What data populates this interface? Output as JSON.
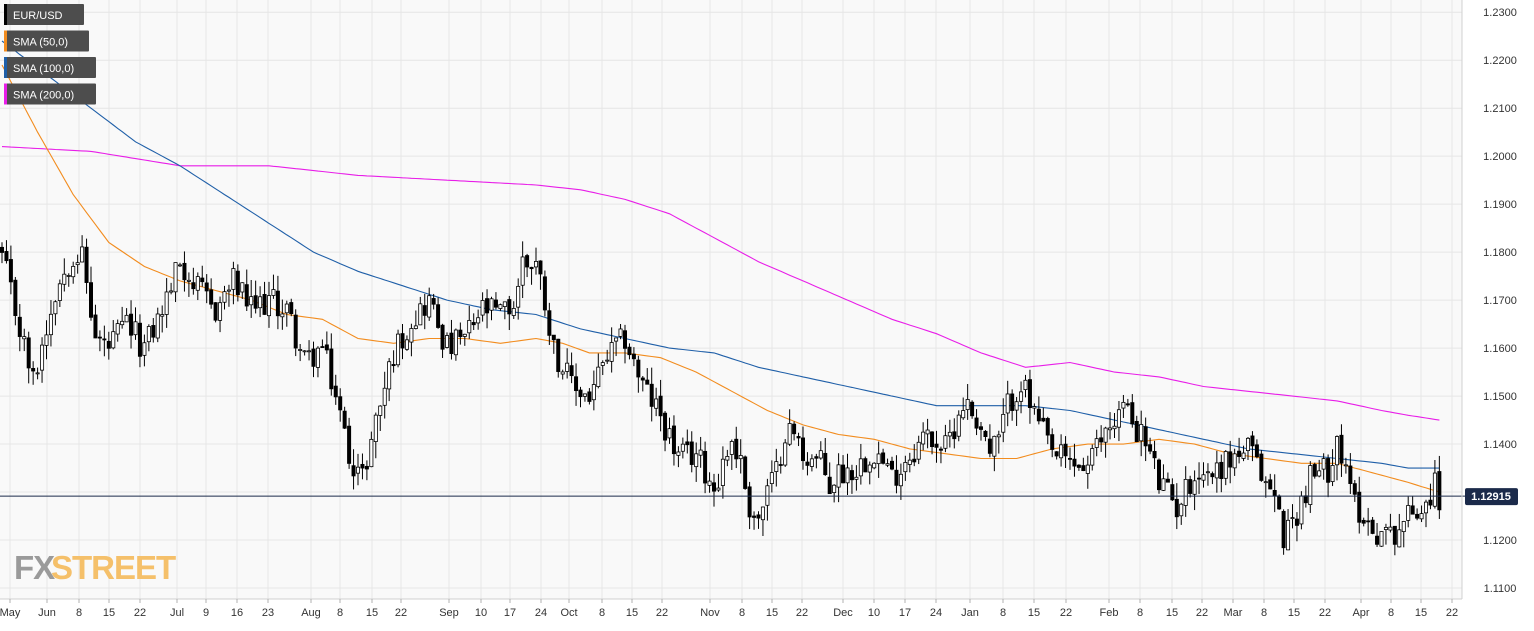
{
  "legend": [
    {
      "label": "EUR/USD",
      "color": "#000000"
    },
    {
      "label": "SMA (50,0)",
      "color": "#f28c1e"
    },
    {
      "label": "SMA (100,0)",
      "color": "#1f5fa8"
    },
    {
      "label": "SMA (200,0)",
      "color": "#e81ee8"
    }
  ],
  "watermark": {
    "part1": "FX",
    "part2": "STREET",
    "color1": "#9a9a9a",
    "color2": "#f5c06a"
  },
  "current_price": {
    "label": "1.12915",
    "value": 1.12915
  },
  "colors": {
    "background": "#f9f9f9",
    "grid": "#e6e6e6",
    "axis_text": "#333333",
    "candle": "#000000",
    "sma50": "#f28c1e",
    "sma100": "#1f5fa8",
    "sma200": "#e81ee8",
    "price_line": "#1b2a4a"
  },
  "chart_data": {
    "type": "candlestick",
    "title": "",
    "xlabel": "",
    "ylabel": "",
    "ylim": [
      1.1075,
      1.2325
    ],
    "grid": true,
    "legend_position": "top-left",
    "y_ticks": [
      "1.1100",
      "1.1200",
      "1.1300",
      "1.1400",
      "1.1500",
      "1.1600",
      "1.1700",
      "1.1800",
      "1.1900",
      "1.2000",
      "1.2100",
      "1.2200",
      "1.2300"
    ],
    "x_ticks": [
      "May",
      "Jun",
      "8",
      "15",
      "22",
      "Jul",
      "9",
      "16",
      "23",
      "Aug",
      "8",
      "15",
      "22",
      "Sep",
      "10",
      "17",
      "24",
      "Oct",
      "8",
      "15",
      "22",
      "Nov",
      "8",
      "15",
      "22",
      "Dec",
      "10",
      "17",
      "24",
      "Jan",
      "8",
      "15",
      "22",
      "Feb",
      "8",
      "15",
      "22",
      "Mar",
      "8",
      "15",
      "22",
      "Apr",
      "8",
      "15",
      "22"
    ],
    "close_anchors": [
      [
        0,
        1.179
      ],
      [
        4,
        1.164
      ],
      [
        7,
        1.153
      ],
      [
        12,
        1.172
      ],
      [
        16,
        1.18
      ],
      [
        18,
        1.179
      ],
      [
        21,
        1.162
      ],
      [
        24,
        1.16
      ],
      [
        28,
        1.165
      ],
      [
        32,
        1.16
      ],
      [
        36,
        1.168
      ],
      [
        40,
        1.178
      ],
      [
        44,
        1.172
      ],
      [
        48,
        1.168
      ],
      [
        52,
        1.174
      ],
      [
        56,
        1.168
      ],
      [
        60,
        1.17
      ],
      [
        64,
        1.168
      ],
      [
        68,
        1.157
      ],
      [
        72,
        1.16
      ],
      [
        75,
        1.15
      ],
      [
        78,
        1.138
      ],
      [
        81,
        1.133
      ],
      [
        84,
        1.145
      ],
      [
        88,
        1.159
      ],
      [
        92,
        1.166
      ],
      [
        96,
        1.17
      ],
      [
        100,
        1.16
      ],
      [
        104,
        1.162
      ],
      [
        108,
        1.168
      ],
      [
        112,
        1.167
      ],
      [
        115,
        1.169
      ],
      [
        117,
        1.178
      ],
      [
        120,
        1.178
      ],
      [
        122,
        1.17
      ],
      [
        124,
        1.16
      ],
      [
        128,
        1.152
      ],
      [
        132,
        1.15
      ],
      [
        136,
        1.158
      ],
      [
        140,
        1.162
      ],
      [
        144,
        1.152
      ],
      [
        148,
        1.146
      ],
      [
        152,
        1.137
      ],
      [
        156,
        1.138
      ],
      [
        160,
        1.131
      ],
      [
        164,
        1.141
      ],
      [
        166,
        1.136
      ],
      [
        168,
        1.127
      ],
      [
        170,
        1.124
      ],
      [
        172,
        1.13
      ],
      [
        174,
        1.134
      ],
      [
        176,
        1.143
      ],
      [
        178,
        1.142
      ],
      [
        180,
        1.138
      ],
      [
        184,
        1.136
      ],
      [
        186,
        1.131
      ],
      [
        188,
        1.134
      ],
      [
        192,
        1.135
      ],
      [
        196,
        1.139
      ],
      [
        200,
        1.133
      ],
      [
        204,
        1.138
      ],
      [
        208,
        1.142
      ],
      [
        212,
        1.139
      ],
      [
        216,
        1.149
      ],
      [
        220,
        1.144
      ],
      [
        222,
        1.138
      ],
      [
        224,
        1.141
      ],
      [
        226,
        1.148
      ],
      [
        229,
        1.153
      ],
      [
        232,
        1.146
      ],
      [
        236,
        1.138
      ],
      [
        240,
        1.136
      ],
      [
        244,
        1.135
      ],
      [
        248,
        1.143
      ],
      [
        252,
        1.148
      ],
      [
        256,
        1.142
      ],
      [
        258,
        1.138
      ],
      [
        260,
        1.132
      ],
      [
        264,
        1.127
      ],
      [
        268,
        1.134
      ],
      [
        272,
        1.134
      ],
      [
        276,
        1.137
      ],
      [
        280,
        1.139
      ],
      [
        284,
        1.132
      ],
      [
        286,
        1.129
      ],
      [
        288,
        1.121
      ],
      [
        290,
        1.124
      ],
      [
        292,
        1.128
      ],
      [
        294,
        1.133
      ],
      [
        296,
        1.134
      ],
      [
        298,
        1.135
      ],
      [
        300,
        1.142
      ],
      [
        302,
        1.133
      ],
      [
        304,
        1.128
      ],
      [
        306,
        1.125
      ],
      [
        308,
        1.122
      ],
      [
        312,
        1.121
      ],
      [
        316,
        1.125
      ],
      [
        320,
        1.128
      ],
      [
        322,
        1.132
      ],
      [
        323,
        1.1291
      ]
    ],
    "sma50_anchors": [
      [
        0,
        1.219
      ],
      [
        8,
        1.205
      ],
      [
        16,
        1.192
      ],
      [
        24,
        1.182
      ],
      [
        32,
        1.177
      ],
      [
        40,
        1.174
      ],
      [
        48,
        1.172
      ],
      [
        56,
        1.17
      ],
      [
        64,
        1.167
      ],
      [
        72,
        1.166
      ],
      [
        80,
        1.162
      ],
      [
        88,
        1.161
      ],
      [
        96,
        1.162
      ],
      [
        104,
        1.162
      ],
      [
        112,
        1.161
      ],
      [
        120,
        1.162
      ],
      [
        126,
        1.161
      ],
      [
        132,
        1.159
      ],
      [
        140,
        1.159
      ],
      [
        148,
        1.158
      ],
      [
        156,
        1.155
      ],
      [
        164,
        1.151
      ],
      [
        172,
        1.147
      ],
      [
        180,
        1.144
      ],
      [
        188,
        1.142
      ],
      [
        196,
        1.141
      ],
      [
        204,
        1.139
      ],
      [
        212,
        1.138
      ],
      [
        220,
        1.137
      ],
      [
        228,
        1.137
      ],
      [
        236,
        1.139
      ],
      [
        244,
        1.14
      ],
      [
        252,
        1.14
      ],
      [
        260,
        1.141
      ],
      [
        268,
        1.14
      ],
      [
        276,
        1.138
      ],
      [
        284,
        1.137
      ],
      [
        292,
        1.136
      ],
      [
        300,
        1.136
      ],
      [
        308,
        1.134
      ],
      [
        316,
        1.132
      ],
      [
        323,
        1.13
      ]
    ],
    "sma100_anchors": [
      [
        0,
        1.224
      ],
      [
        10,
        1.217
      ],
      [
        20,
        1.21
      ],
      [
        30,
        1.203
      ],
      [
        40,
        1.198
      ],
      [
        50,
        1.192
      ],
      [
        60,
        1.186
      ],
      [
        70,
        1.18
      ],
      [
        80,
        1.176
      ],
      [
        90,
        1.173
      ],
      [
        100,
        1.17
      ],
      [
        110,
        1.168
      ],
      [
        120,
        1.167
      ],
      [
        130,
        1.164
      ],
      [
        140,
        1.162
      ],
      [
        150,
        1.16
      ],
      [
        160,
        1.159
      ],
      [
        170,
        1.156
      ],
      [
        180,
        1.154
      ],
      [
        190,
        1.152
      ],
      [
        200,
        1.15
      ],
      [
        210,
        1.148
      ],
      [
        220,
        1.148
      ],
      [
        230,
        1.148
      ],
      [
        240,
        1.147
      ],
      [
        250,
        1.145
      ],
      [
        260,
        1.143
      ],
      [
        270,
        1.141
      ],
      [
        280,
        1.139
      ],
      [
        290,
        1.138
      ],
      [
        300,
        1.137
      ],
      [
        310,
        1.136
      ],
      [
        316,
        1.135
      ],
      [
        323,
        1.135
      ]
    ],
    "sma200_anchors": [
      [
        0,
        1.202
      ],
      [
        20,
        1.201
      ],
      [
        40,
        1.198
      ],
      [
        60,
        1.198
      ],
      [
        80,
        1.196
      ],
      [
        100,
        1.195
      ],
      [
        120,
        1.194
      ],
      [
        130,
        1.193
      ],
      [
        140,
        1.191
      ],
      [
        150,
        1.188
      ],
      [
        160,
        1.183
      ],
      [
        170,
        1.178
      ],
      [
        180,
        1.174
      ],
      [
        190,
        1.17
      ],
      [
        200,
        1.166
      ],
      [
        210,
        1.163
      ],
      [
        220,
        1.159
      ],
      [
        230,
        1.156
      ],
      [
        240,
        1.157
      ],
      [
        250,
        1.155
      ],
      [
        260,
        1.154
      ],
      [
        270,
        1.152
      ],
      [
        280,
        1.151
      ],
      [
        290,
        1.15
      ],
      [
        300,
        1.149
      ],
      [
        310,
        1.147
      ],
      [
        316,
        1.146
      ],
      [
        323,
        1.145
      ]
    ]
  }
}
